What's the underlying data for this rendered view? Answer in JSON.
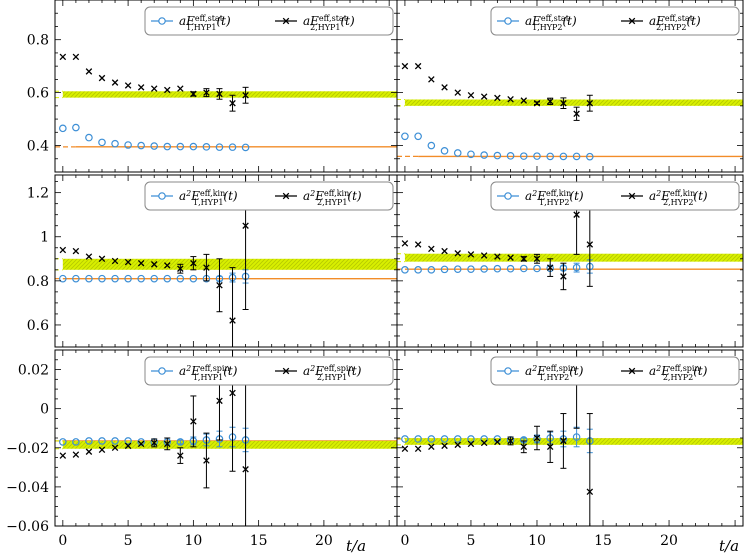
{
  "figure": {
    "x_axis_label": "t/a",
    "x_ticks": [
      0,
      5,
      10,
      15,
      20
    ],
    "xlim": [
      -0.6,
      25.6
    ],
    "row_ylims": [
      [
        0.3,
        0.95
      ],
      [
        0.5,
        1.28
      ],
      [
        -0.06,
        0.03
      ]
    ],
    "row_yticks": [
      [
        0.4,
        0.6,
        0.8
      ],
      [
        0.6,
        0.8,
        1,
        1.2
      ],
      [
        -0.06,
        -0.04,
        -0.02,
        0,
        0.02
      ]
    ],
    "row_ytick_labels": [
      [
        "0.4",
        "0.6",
        "0.8"
      ],
      [
        "0.6",
        "0.8",
        "1",
        "1.2"
      ],
      [
        "−0.06",
        "−0.04",
        "−0.02",
        "0",
        "0.02"
      ]
    ],
    "colors": {
      "series1": "#3d8fd6",
      "series2": "#000000",
      "fit1": "#f28c28",
      "band": "#d9f000",
      "band_hatch": "#b5c900"
    }
  },
  "chart_data": [
    {
      "panel": "stat-HYP1",
      "type": "scatter",
      "legend": [
        "aE^{eff,stat}_{1,HYP1}(t)",
        "aE^{eff,stat}_{2,HYP1}(t)"
      ],
      "series": [
        {
          "name": "aE^{eff,stat}_{1,HYP1}(t)",
          "x": [
            0,
            1,
            2,
            3,
            4,
            5,
            6,
            7,
            8,
            9,
            10,
            11,
            12,
            13,
            14
          ],
          "y": [
            0.465,
            0.468,
            0.43,
            0.412,
            0.407,
            0.402,
            0.4,
            0.398,
            0.396,
            0.396,
            0.396,
            0.395,
            0.394,
            0.394,
            0.393
          ],
          "err": [
            0,
            0,
            0,
            0,
            0,
            0,
            0,
            0,
            0,
            0,
            0,
            0,
            0,
            0,
            0
          ]
        },
        {
          "name": "aE^{eff,stat}_{2,HYP1}(t)",
          "x": [
            0,
            1,
            2,
            3,
            4,
            5,
            6,
            7,
            8,
            9,
            10,
            11,
            12,
            13,
            14
          ],
          "y": [
            0.735,
            0.735,
            0.68,
            0.655,
            0.638,
            0.627,
            0.62,
            0.615,
            0.61,
            0.615,
            0.595,
            0.6,
            0.595,
            0.56,
            0.59
          ],
          "err": [
            0,
            0,
            0,
            0,
            0,
            0,
            0,
            0,
            0,
            0,
            0.008,
            0.015,
            0.02,
            0.03,
            0.03
          ]
        }
      ],
      "fits": [
        {
          "value": 0.395,
          "t_min": 1,
          "t_max": 14,
          "type": "line",
          "series": "aE^{eff,stat}_{1,HYP1}(t)"
        },
        {
          "value": 0.593,
          "t_min": 0,
          "t_max": 10,
          "type": "band",
          "half_width": 0.012,
          "series": "aE^{eff,stat}_{2,HYP1}(t)"
        }
      ]
    },
    {
      "panel": "stat-HYP2",
      "type": "scatter",
      "legend": [
        "aE^{eff,stat}_{1,HYP2}(t)",
        "aE^{eff,stat}_{2,HYP2}(t)"
      ],
      "series": [
        {
          "name": "aE^{eff,stat}_{1,HYP2}(t)",
          "x": [
            0,
            1,
            2,
            3,
            4,
            5,
            6,
            7,
            8,
            9,
            10,
            11,
            12,
            13,
            14
          ],
          "y": [
            0.435,
            0.435,
            0.4,
            0.38,
            0.372,
            0.367,
            0.364,
            0.362,
            0.361,
            0.36,
            0.36,
            0.359,
            0.359,
            0.359,
            0.358
          ],
          "err": [
            0,
            0,
            0,
            0,
            0,
            0,
            0,
            0,
            0,
            0,
            0,
            0,
            0,
            0,
            0
          ]
        },
        {
          "name": "aE^{eff,stat}_{2,HYP2}(t)",
          "x": [
            0,
            1,
            2,
            3,
            4,
            5,
            6,
            7,
            8,
            9,
            10,
            11,
            12,
            13,
            14
          ],
          "y": [
            0.7,
            0.7,
            0.65,
            0.62,
            0.6,
            0.59,
            0.585,
            0.58,
            0.575,
            0.57,
            0.56,
            0.567,
            0.56,
            0.52,
            0.56
          ],
          "err": [
            0,
            0,
            0,
            0,
            0,
            0,
            0,
            0,
            0,
            0,
            0.005,
            0.012,
            0.02,
            0.025,
            0.03
          ]
        }
      ],
      "fits": [
        {
          "value": 0.359,
          "t_min": 1,
          "t_max": 14,
          "type": "line",
          "series": "aE^{eff,stat}_{1,HYP2}(t)"
        },
        {
          "value": 0.562,
          "t_min": 0,
          "t_max": 11,
          "type": "band",
          "half_width": 0.012,
          "series": "aE^{eff,stat}_{2,HYP2}(t)"
        }
      ]
    },
    {
      "panel": "kin-HYP1",
      "type": "scatter",
      "legend": [
        "a^2E^{eff,kin}_{1,HYP1}(t)",
        "a^2E^{eff,kin}_{2,HYP1}(t)"
      ],
      "series": [
        {
          "name": "a^2E^{eff,kin}_{1,HYP1}(t)",
          "x": [
            0,
            1,
            2,
            3,
            4,
            5,
            6,
            7,
            8,
            9,
            10,
            11,
            12,
            13,
            14
          ],
          "y": [
            0.81,
            0.81,
            0.81,
            0.81,
            0.81,
            0.81,
            0.81,
            0.81,
            0.81,
            0.81,
            0.81,
            0.81,
            0.81,
            0.815,
            0.82
          ],
          "err": [
            0,
            0,
            0,
            0,
            0,
            0,
            0,
            0,
            0,
            0,
            0,
            0,
            0.01,
            0.02,
            0.03
          ]
        },
        {
          "name": "a^2E^{eff,kin}_{2,HYP1}(t)",
          "x": [
            0,
            1,
            2,
            3,
            4,
            5,
            6,
            7,
            8,
            9,
            10,
            11,
            12,
            13,
            14
          ],
          "y": [
            0.94,
            0.935,
            0.91,
            0.9,
            0.89,
            0.885,
            0.88,
            0.875,
            0.87,
            0.855,
            0.88,
            0.86,
            0.78,
            0.62,
            1.05
          ],
          "err": [
            0,
            0,
            0,
            0,
            0,
            0,
            0,
            0,
            0,
            0.02,
            0.03,
            0.06,
            0.12,
            0.24,
            0.38
          ]
        }
      ],
      "fits": [
        {
          "value": 0.81,
          "t_min": 0,
          "t_max": 15,
          "type": "line",
          "series": "a^2E^{eff,kin}_{1,HYP1}(t)"
        },
        {
          "value": 0.875,
          "t_min": 0,
          "t_max": 9,
          "type": "band",
          "half_width": 0.025,
          "series": "a^2E^{eff,kin}_{2,HYP1}(t)"
        }
      ]
    },
    {
      "panel": "kin-HYP2",
      "type": "scatter",
      "legend": [
        "a^2E^{eff,kin}_{1,HYP2}(t)",
        "a^2E^{eff,kin}_{2,HYP2}(t)"
      ],
      "series": [
        {
          "name": "a^2E^{eff,kin}_{1,HYP2}(t)",
          "x": [
            0,
            1,
            2,
            3,
            4,
            5,
            6,
            7,
            8,
            9,
            10,
            11,
            12,
            13,
            14
          ],
          "y": [
            0.85,
            0.85,
            0.85,
            0.852,
            0.853,
            0.853,
            0.854,
            0.855,
            0.855,
            0.856,
            0.856,
            0.857,
            0.858,
            0.86,
            0.865
          ],
          "err": [
            0,
            0,
            0,
            0,
            0,
            0,
            0,
            0,
            0,
            0,
            0,
            0,
            0.01,
            0.02,
            0.03
          ]
        },
        {
          "name": "a^2E^{eff,kin}_{2,HYP2}(t)",
          "x": [
            0,
            1,
            2,
            3,
            4,
            5,
            6,
            7,
            8,
            9,
            10,
            11,
            12,
            13,
            14
          ],
          "y": [
            0.97,
            0.965,
            0.945,
            0.935,
            0.925,
            0.92,
            0.915,
            0.91,
            0.905,
            0.9,
            0.9,
            0.86,
            0.82,
            1.1,
            0.965
          ],
          "err": [
            0,
            0,
            0,
            0,
            0,
            0,
            0,
            0,
            0,
            0.01,
            0.02,
            0.04,
            0.06,
            0.18,
            0.19
          ]
        }
      ],
      "fits": [
        {
          "value": 0.853,
          "t_min": 0,
          "t_max": 15,
          "type": "line",
          "series": "a^2E^{eff,kin}_{1,HYP2}(t)"
        },
        {
          "value": 0.905,
          "t_min": 0,
          "t_max": 10,
          "type": "band",
          "half_width": 0.018,
          "series": "a^2E^{eff,kin}_{2,HYP2}(t)"
        }
      ]
    },
    {
      "panel": "spin-HYP1",
      "type": "scatter",
      "legend": [
        "a^2E^{eff,spin}_{1,HYP1}(t)",
        "a^2E^{eff,spin}_{2,HYP1}(t)"
      ],
      "series": [
        {
          "name": "a^2E^{eff,spin}_{1,HYP1}(t)",
          "x": [
            0,
            1,
            2,
            3,
            4,
            5,
            6,
            7,
            8,
            9,
            10,
            11,
            12,
            13,
            14
          ],
          "y": [
            -0.017,
            -0.017,
            -0.0165,
            -0.0165,
            -0.0165,
            -0.0165,
            -0.017,
            -0.017,
            -0.017,
            -0.017,
            -0.0165,
            -0.016,
            -0.0155,
            -0.0145,
            -0.016
          ],
          "err": [
            0,
            0,
            0,
            0,
            0,
            0,
            0,
            0,
            0,
            0.001,
            0.002,
            0.003,
            0.004,
            0.005,
            0.006
          ]
        },
        {
          "name": "a^2E^{eff,spin}_{2,HYP1}(t)",
          "x": [
            0,
            1,
            2,
            3,
            4,
            5,
            6,
            7,
            8,
            9,
            10,
            11,
            12,
            13,
            14
          ],
          "y": [
            -0.024,
            -0.0235,
            -0.022,
            -0.021,
            -0.02,
            -0.019,
            -0.018,
            -0.0175,
            -0.018,
            -0.024,
            -0.0065,
            -0.0265,
            0.004,
            0.008,
            -0.031
          ],
          "err": [
            0,
            0,
            0,
            0,
            0,
            0,
            0,
            0.002,
            0.003,
            0.004,
            0.013,
            0.014,
            0.02,
            0.04,
            0.05
          ]
        }
      ],
      "fits": [
        {
          "value": -0.0165,
          "t_min": 0,
          "t_max": 15,
          "type": "line",
          "series": "a^2E^{eff,spin}_{1,HYP1}(t)"
        },
        {
          "value": -0.0185,
          "t_min": 0,
          "t_max": 8,
          "type": "band",
          "half_width": 0.002,
          "series": "a^2E^{eff,spin}_{2,HYP1}(t)"
        }
      ]
    },
    {
      "panel": "spin-HYP2",
      "type": "scatter",
      "legend": [
        "a^2E^{eff,spin}_{1,HYP2}(t)",
        "a^2E^{eff,spin}_{2,HYP2}(t)"
      ],
      "series": [
        {
          "name": "a^2E^{eff,spin}_{1,HYP2}(t)",
          "x": [
            0,
            1,
            2,
            3,
            4,
            5,
            6,
            7,
            8,
            9,
            10,
            11,
            12,
            13,
            14
          ],
          "y": [
            -0.0155,
            -0.0155,
            -0.0155,
            -0.0155,
            -0.0155,
            -0.0155,
            -0.0155,
            -0.0155,
            -0.016,
            -0.016,
            -0.0155,
            -0.015,
            -0.0155,
            -0.0145,
            -0.0165
          ],
          "err": [
            0,
            0,
            0,
            0,
            0,
            0,
            0,
            0,
            0,
            0.001,
            0.002,
            0.003,
            0.004,
            0.005,
            0.006
          ]
        },
        {
          "name": "a^2E^{eff,spin}_{2,HYP2}(t)",
          "x": [
            0,
            1,
            2,
            3,
            4,
            5,
            6,
            7,
            8,
            9,
            10,
            11,
            12,
            13,
            14
          ],
          "y": [
            -0.0205,
            -0.0205,
            -0.0195,
            -0.019,
            -0.0185,
            -0.018,
            -0.0175,
            -0.017,
            -0.0165,
            -0.0195,
            -0.015,
            -0.0195,
            -0.0165,
            0.025,
            -0.0425
          ],
          "err": [
            0,
            0,
            0,
            0,
            0,
            0,
            0,
            0,
            0.002,
            0.003,
            0.006,
            0.008,
            0.014,
            0.035,
            0.04
          ]
        }
      ],
      "fits": [
        {
          "value": -0.0155,
          "t_min": 0,
          "t_max": 15,
          "type": "line",
          "series": "a^2E^{eff,spin}_{1,HYP2}(t)"
        },
        {
          "value": -0.0168,
          "t_min": 0,
          "t_max": 8,
          "type": "band",
          "half_width": 0.0017,
          "series": "a^2E^{eff,spin}_{2,HYP2}(t)"
        }
      ]
    }
  ]
}
